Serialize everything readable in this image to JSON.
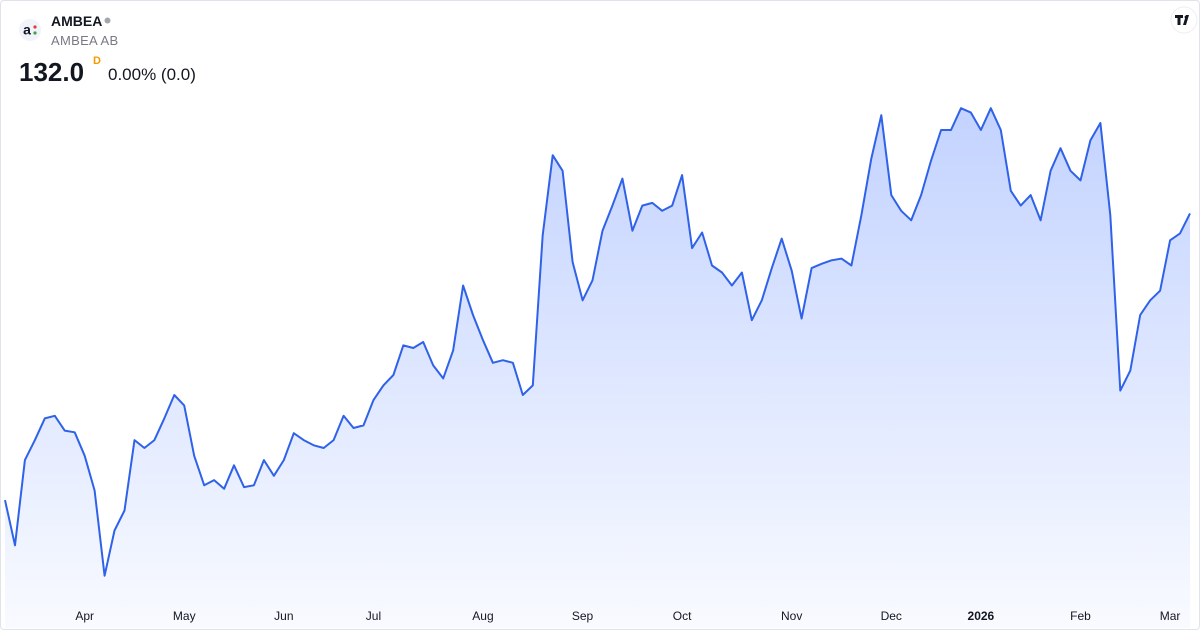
{
  "header": {
    "logo": "a",
    "symbol": "AMBEA",
    "name": "AMBEA AB",
    "price": "132.0",
    "price_flag": "D",
    "change": "0.00% (0.0)"
  },
  "chart_data": {
    "type": "area",
    "color": "#2f62e8",
    "ylim": [
      87.5,
      146.2
    ],
    "categories": [
      null,
      null,
      null,
      null,
      null,
      null,
      null,
      null,
      "Apr",
      null,
      null,
      null,
      null,
      null,
      null,
      null,
      null,
      null,
      "May",
      null,
      null,
      null,
      null,
      null,
      null,
      null,
      null,
      null,
      "Jun",
      null,
      null,
      null,
      null,
      null,
      null,
      null,
      null,
      "Jul",
      null,
      null,
      null,
      null,
      null,
      null,
      null,
      null,
      null,
      null,
      "Aug",
      null,
      null,
      null,
      null,
      null,
      null,
      null,
      null,
      null,
      "Sep",
      null,
      null,
      null,
      null,
      null,
      null,
      null,
      null,
      null,
      "Oct",
      null,
      null,
      null,
      null,
      null,
      null,
      null,
      null,
      null,
      null,
      "Nov",
      null,
      null,
      null,
      null,
      null,
      null,
      null,
      null,
      null,
      "Dec",
      null,
      null,
      null,
      null,
      null,
      null,
      null,
      null,
      "2026",
      null,
      null,
      null,
      null,
      null,
      null,
      null,
      null,
      null,
      "Feb",
      null,
      null,
      null,
      null,
      null,
      null,
      null,
      null,
      "Mar",
      null,
      null
    ],
    "values": [
      99.0,
      93.8,
      103.6,
      105.9,
      108.4,
      108.7,
      107.0,
      106.8,
      104.1,
      100.1,
      90.3,
      95.5,
      97.8,
      105.9,
      105.0,
      105.9,
      108.4,
      111.1,
      109.9,
      104.1,
      100.7,
      101.3,
      100.3,
      103.0,
      100.5,
      100.7,
      103.6,
      101.8,
      103.6,
      106.7,
      105.9,
      105.3,
      105.0,
      105.9,
      108.7,
      107.3,
      107.6,
      110.5,
      112.2,
      113.4,
      116.8,
      116.5,
      117.2,
      114.5,
      113.0,
      116.2,
      123.7,
      120.3,
      117.4,
      114.8,
      115.1,
      114.8,
      111.1,
      112.2,
      129.5,
      138.7,
      136.9,
      126.4,
      122.0,
      124.3,
      130.0,
      132.9,
      136.0,
      130.0,
      132.9,
      133.2,
      132.3,
      132.9,
      136.4,
      128.0,
      129.8,
      126.0,
      125.2,
      123.7,
      125.2,
      119.7,
      122.0,
      125.7,
      129.1,
      125.4,
      119.9,
      125.7,
      126.2,
      126.6,
      126.8,
      126.0,
      131.8,
      138.3,
      143.3,
      134.1,
      132.3,
      131.2,
      134.1,
      138.1,
      141.6,
      141.6,
      144.1,
      143.6,
      141.6,
      144.1,
      141.6,
      134.6,
      132.9,
      134.1,
      131.2,
      136.9,
      139.5,
      136.9,
      135.8,
      140.4,
      142.4,
      131.8,
      111.6,
      113.9,
      120.3,
      122.0,
      123.1,
      128.9,
      129.7,
      132.0
    ]
  }
}
